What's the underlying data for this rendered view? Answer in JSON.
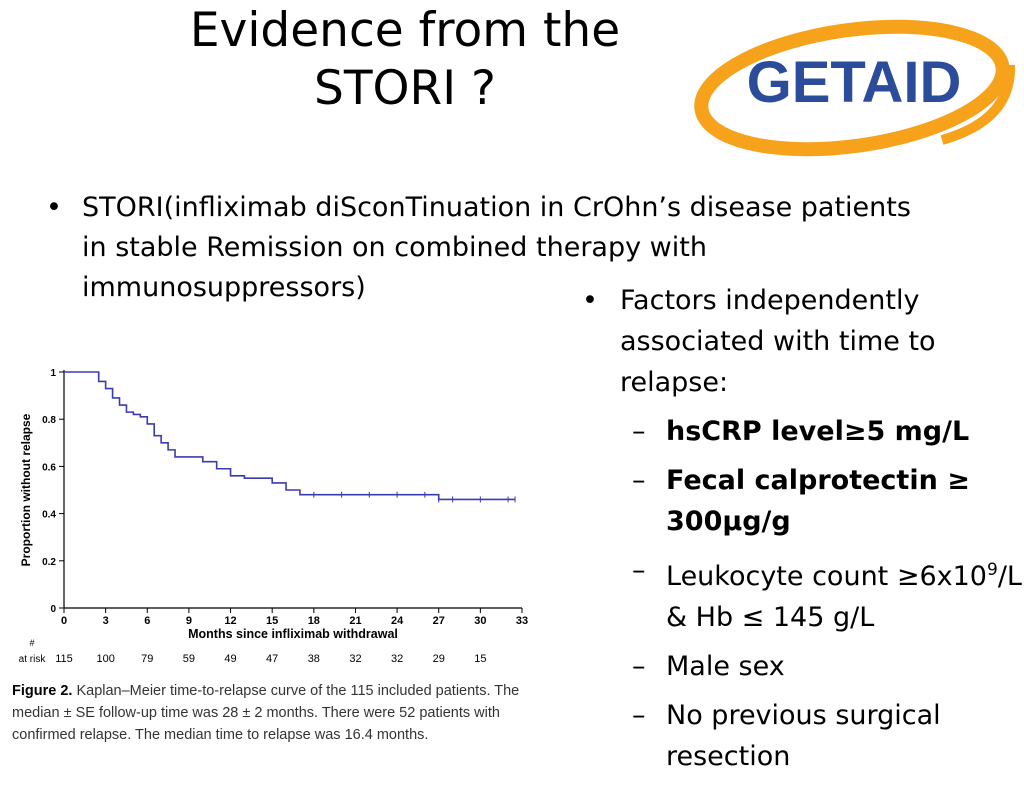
{
  "slide": {
    "title_line1": "Evidence from the",
    "title_line2": "STORI ?",
    "intro_bullet": "STORI(infliximab diSconTinuation in CrOhn’s disease patients in stable Remission on combined therapy with immunosuppressors)",
    "factors_header": "Factors independently associated with time to relapse:",
    "factors": [
      {
        "text": "hsCRP level≥5 mg/L",
        "bold": true
      },
      {
        "text": "Fecal calprotectin ≥ 300µg/g",
        "bold": true
      },
      {
        "text_a": "Leukocyte count ≥6x10",
        "sup": "9",
        "text_b": "/L & Hb ≤ 145 g/L",
        "bold": false
      },
      {
        "text": "Male sex",
        "bold": false
      },
      {
        "text": "No previous surgical resection",
        "bold": false
      }
    ],
    "bullet_glyph": "•",
    "dash_glyph": "–"
  },
  "logo": {
    "text": "GETAID",
    "text_color": "#2b4c9b",
    "ring_color": "#f7a21b"
  },
  "chart_data": {
    "type": "line",
    "title": "",
    "xlabel": "Months since infliximab withdrawal",
    "ylabel": "Proportion without relapse",
    "xlim": [
      0,
      33
    ],
    "ylim": [
      0,
      1
    ],
    "xticks": [
      0,
      3,
      6,
      9,
      12,
      15,
      18,
      21,
      24,
      27,
      30,
      33
    ],
    "yticks": [
      0,
      0.2,
      0.4,
      0.6,
      0.8,
      1
    ],
    "ytick_labels": [
      "0",
      "0.2",
      "0.4",
      "0.6",
      "0.8",
      "1"
    ],
    "line_color": "#3b3bb0",
    "series": [
      {
        "x": [
          0,
          2,
          2.5,
          3,
          3.5,
          4,
          4.5,
          5,
          5.5,
          6,
          6.5,
          7,
          7.5,
          8,
          9,
          10,
          11,
          12,
          13,
          15,
          16,
          17,
          18,
          20,
          22,
          24,
          26,
          27,
          28,
          30,
          32,
          32.5
        ],
        "y": [
          1,
          1,
          0.96,
          0.93,
          0.89,
          0.86,
          0.83,
          0.82,
          0.81,
          0.78,
          0.73,
          0.7,
          0.67,
          0.64,
          0.64,
          0.62,
          0.59,
          0.56,
          0.55,
          0.53,
          0.5,
          0.48,
          0.48,
          0.48,
          0.48,
          0.48,
          0.48,
          0.46,
          0.46,
          0.46,
          0.46,
          0.46
        ]
      }
    ],
    "at_risk": {
      "label_top": "#",
      "label": "at risk",
      "months": [
        0,
        3,
        6,
        9,
        12,
        15,
        18,
        21,
        24,
        27,
        30
      ],
      "values": [
        115,
        100,
        79,
        59,
        49,
        47,
        38,
        32,
        32,
        29,
        15
      ]
    },
    "caption_label": "Figure 2.",
    "caption_text": "Kaplan–Meier time-to-relapse curve of the 115 included patients. The median ± SE follow-up time was 28 ± 2 months. There were 52 patients with confirmed relapse. The median time to relapse was 16.4 months."
  }
}
